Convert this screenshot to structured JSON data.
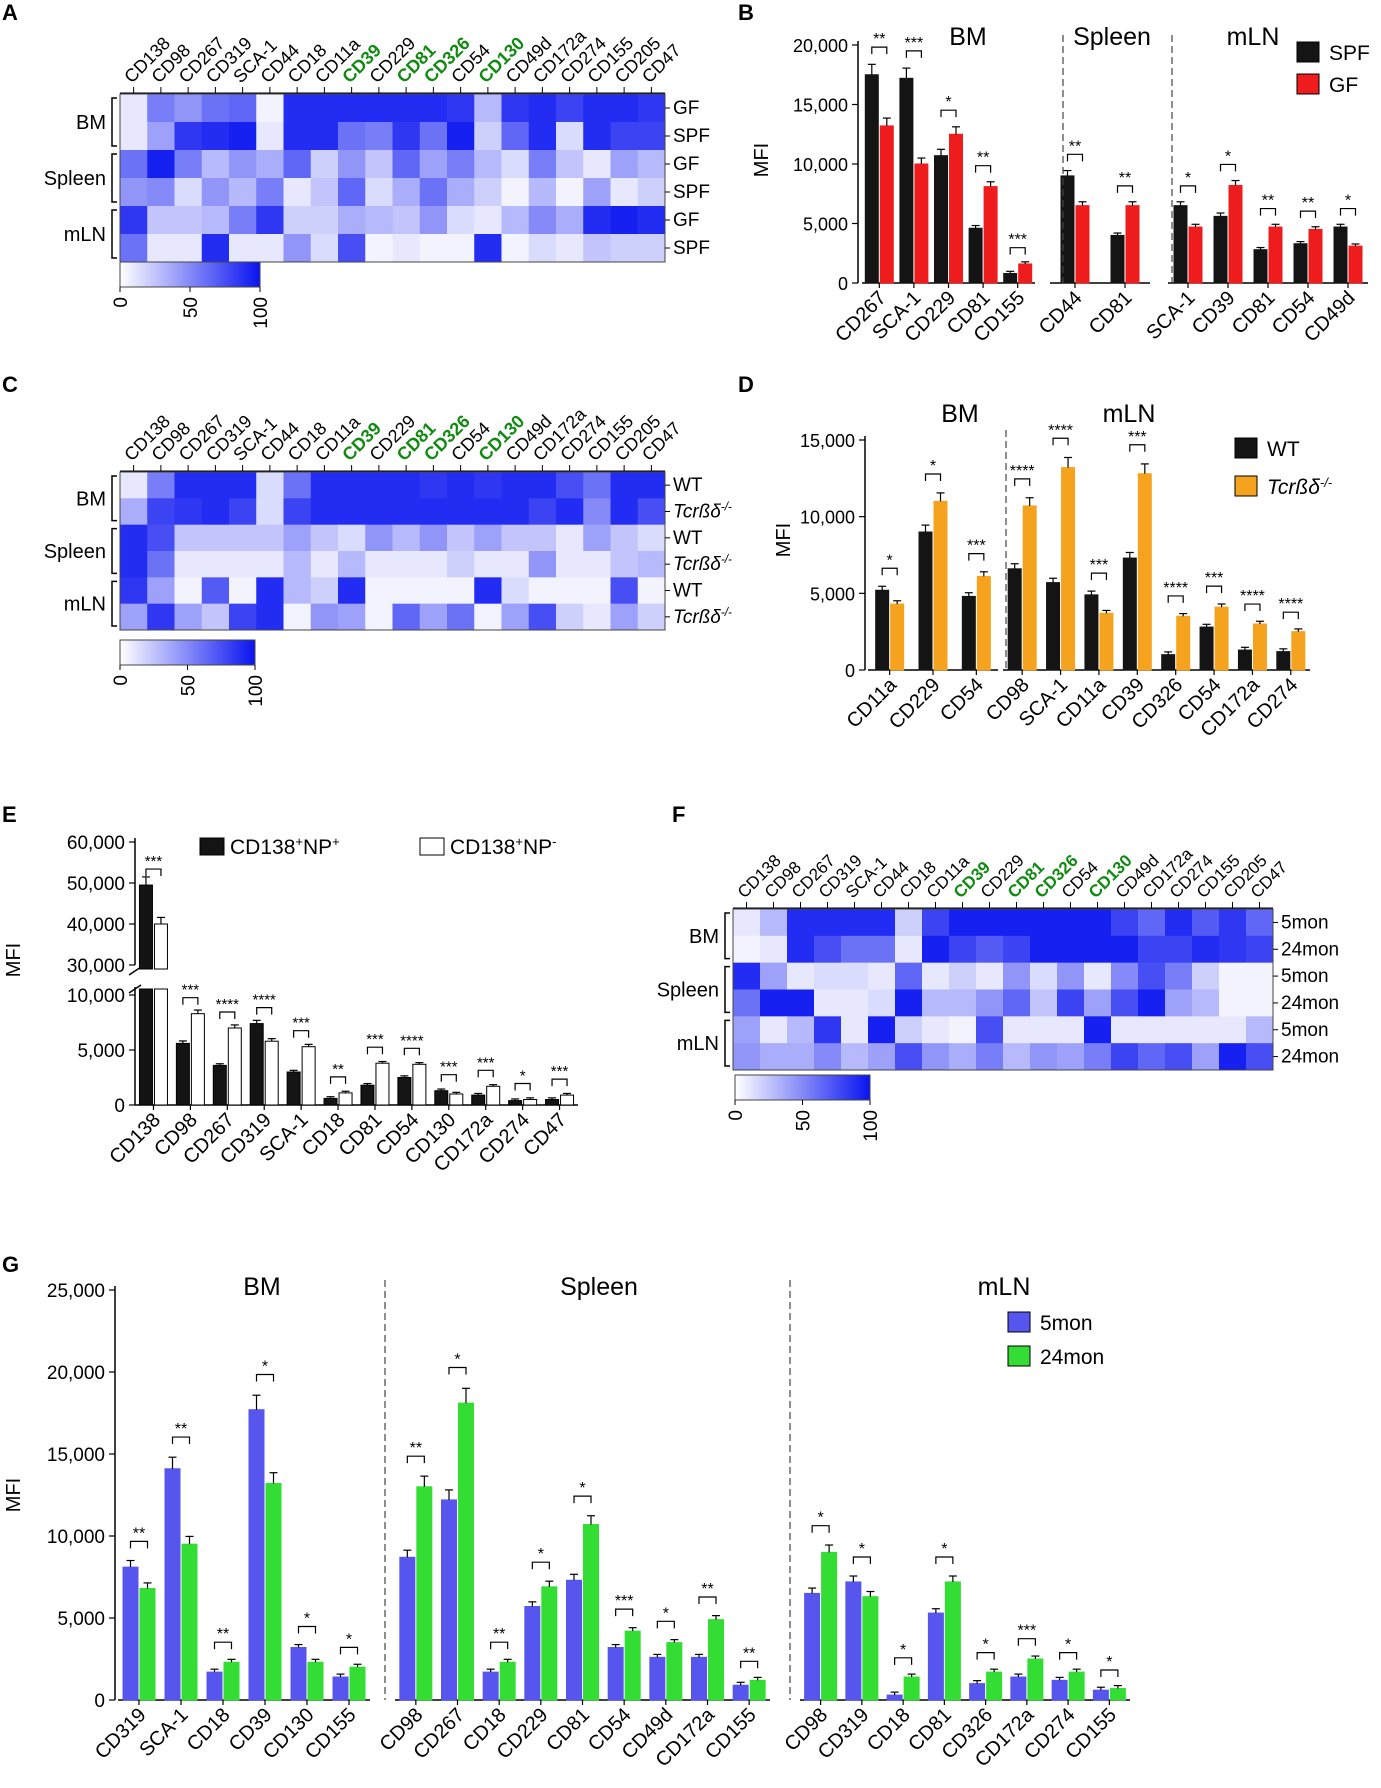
{
  "colors": {
    "heat_max": "#0a14f0",
    "heat_min": "#ffffff",
    "highlight_text": "#118a11",
    "spf": "#141414",
    "gf": "#ee1c1c",
    "wt": "#141414",
    "tcr": "#f5a31f",
    "np_pos": "#141414",
    "np_neg": "#ffffff",
    "mon5": "#5656ee",
    "mon24": "#33dd33"
  },
  "heatmap_markers": [
    "CD138",
    "CD98",
    "CD267",
    "CD319",
    "SCA-1",
    "CD44",
    "CD18",
    "CD11a",
    "CD39",
    "CD229",
    "CD81",
    "CD326",
    "CD54",
    "CD130",
    "CD49d",
    "CD172a",
    "CD274",
    "CD155",
    "CD205",
    "CD47"
  ],
  "highlight_markers": [
    "CD39",
    "CD81",
    "CD326",
    "CD130"
  ],
  "tissues": [
    "BM",
    "Spleen",
    "mLN"
  ],
  "colorbar_ticks": [
    "0",
    "50",
    "100"
  ],
  "chart_data": [
    {
      "id": "A",
      "type": "heatmap",
      "panel_label": "A",
      "row_labels": [
        "GF",
        "SPF",
        "GF",
        "SPF",
        "GF",
        "SPF"
      ],
      "group_labels": [
        "BM",
        "Spleen",
        "mLN"
      ],
      "scale": [
        0,
        100
      ],
      "values": [
        [
          10,
          55,
          45,
          60,
          65,
          5,
          90,
          90,
          90,
          90,
          90,
          90,
          85,
          30,
          85,
          90,
          80,
          90,
          90,
          85
        ],
        [
          10,
          40,
          85,
          90,
          95,
          10,
          90,
          90,
          60,
          55,
          85,
          60,
          95,
          20,
          65,
          90,
          15,
          90,
          80,
          80
        ],
        [
          60,
          95,
          55,
          30,
          45,
          35,
          65,
          20,
          45,
          25,
          65,
          40,
          55,
          30,
          15,
          55,
          25,
          10,
          40,
          30
        ],
        [
          45,
          50,
          15,
          45,
          30,
          55,
          10,
          25,
          65,
          15,
          35,
          60,
          35,
          20,
          5,
          30,
          5,
          40,
          10,
          20
        ],
        [
          85,
          25,
          25,
          30,
          55,
          85,
          20,
          20,
          35,
          30,
          25,
          45,
          15,
          10,
          30,
          50,
          35,
          90,
          95,
          90
        ],
        [
          60,
          10,
          10,
          90,
          10,
          10,
          45,
          15,
          75,
          5,
          10,
          5,
          5,
          90,
          5,
          15,
          10,
          25,
          20,
          20
        ]
      ]
    },
    {
      "id": "B",
      "type": "bar",
      "panel_label": "B",
      "ylabel": "MFI",
      "ylim": [
        0,
        20000
      ],
      "yticks": [
        "0",
        "5,000",
        "10,000",
        "15,000",
        "20,000"
      ],
      "groups": [
        "BM",
        "Spleen",
        "mLN"
      ],
      "categories": [
        [
          "CD267",
          "SCA-1",
          "CD229",
          "CD81",
          "CD155"
        ],
        [
          "CD44",
          "CD81"
        ],
        [
          "SCA-1",
          "CD39",
          "CD81",
          "CD54",
          "CD49d"
        ]
      ],
      "series": [
        {
          "name": "SPF",
          "values": [
            [
              17500,
              17200,
              10700,
              4600,
              800
            ],
            [
              9000,
              4000
            ],
            [
              6500,
              5600,
              2800,
              3300,
              4700
            ]
          ]
        },
        {
          "name": "GF",
          "values": [
            [
              13200,
              10000,
              12500,
              8100,
              1600
            ],
            [
              6500,
              6500
            ],
            [
              4700,
              8200,
              4700,
              4500,
              3100
            ]
          ]
        }
      ],
      "significance": [
        [
          "**",
          "***",
          "*",
          "**",
          "***"
        ],
        [
          "**",
          "**"
        ],
        [
          "*",
          "*",
          "**",
          "**",
          "*"
        ]
      ]
    },
    {
      "id": "C",
      "type": "heatmap",
      "panel_label": "C",
      "row_labels": [
        "WT",
        "Tcrßδ-/-",
        "WT",
        "Tcrßδ-/-",
        "WT",
        "Tcrßδ-/-"
      ],
      "group_labels": [
        "BM",
        "Spleen",
        "mLN"
      ],
      "scale": [
        0,
        100
      ],
      "values": [
        [
          10,
          55,
          90,
          90,
          90,
          15,
          60,
          90,
          90,
          90,
          90,
          85,
          90,
          85,
          90,
          90,
          75,
          60,
          90,
          90
        ],
        [
          35,
          80,
          85,
          90,
          80,
          15,
          80,
          90,
          90,
          90,
          90,
          90,
          90,
          90,
          90,
          80,
          90,
          50,
          90,
          75
        ],
        [
          90,
          75,
          25,
          25,
          25,
          25,
          40,
          25,
          15,
          45,
          30,
          45,
          25,
          40,
          25,
          25,
          10,
          40,
          25,
          15
        ],
        [
          90,
          60,
          10,
          10,
          10,
          10,
          30,
          10,
          30,
          10,
          10,
          10,
          20,
          10,
          10,
          45,
          10,
          10,
          25,
          30
        ],
        [
          85,
          40,
          5,
          70,
          5,
          90,
          30,
          20,
          90,
          5,
          5,
          5,
          5,
          90,
          15,
          5,
          5,
          5,
          75,
          5
        ],
        [
          40,
          85,
          40,
          25,
          80,
          90,
          5,
          45,
          40,
          5,
          65,
          40,
          60,
          5,
          40,
          75,
          20,
          10,
          40,
          20
        ]
      ]
    },
    {
      "id": "D",
      "type": "bar",
      "panel_label": "D",
      "ylabel": "MFI",
      "ylim": [
        0,
        15000
      ],
      "yticks": [
        "0",
        "5,000",
        "10,000",
        "15,000"
      ],
      "groups": [
        "BM",
        "mLN"
      ],
      "categories": [
        [
          "CD11a",
          "CD229",
          "CD54"
        ],
        [
          "CD98",
          "SCA-1",
          "CD11a",
          "CD39",
          "CD326",
          "CD54",
          "CD172a",
          "CD274"
        ]
      ],
      "series": [
        {
          "name": "WT",
          "values": [
            [
              5200,
              9000,
              4800
            ],
            [
              6600,
              5700,
              4900,
              7300,
              1000,
              2800,
              1300,
              1200
            ]
          ]
        },
        {
          "name": "Tcrßδ-/-",
          "values": [
            [
              4300,
              11000,
              6100
            ],
            [
              10700,
              13200,
              3700,
              12800,
              3500,
              4100,
              3000,
              2500
            ]
          ]
        }
      ],
      "significance": [
        [
          "*",
          "*",
          "***"
        ],
        [
          "****",
          "****",
          "***",
          "***",
          "****",
          "***",
          "****",
          "****"
        ]
      ]
    },
    {
      "id": "E",
      "type": "bar",
      "panel_label": "E",
      "ylabel": "MFI",
      "yticks_upper": [
        "30,000",
        "40,000",
        "50,000",
        "60,000"
      ],
      "yticks_lower": [
        "0",
        "5,000",
        "10,000"
      ],
      "categories": [
        "CD138",
        "CD98",
        "CD267",
        "CD319",
        "SCA-1",
        "CD18",
        "CD81",
        "CD54",
        "CD130",
        "CD172a",
        "CD274",
        "CD47"
      ],
      "series": [
        {
          "name": "CD138+NP+",
          "values": [
            49500,
            5600,
            3600,
            7400,
            3000,
            600,
            1800,
            2500,
            1300,
            900,
            400,
            500
          ]
        },
        {
          "name": "CD138+NP-",
          "values": [
            40000,
            8300,
            7000,
            5800,
            5300,
            1100,
            3800,
            3700,
            1000,
            1700,
            500,
            900
          ]
        }
      ],
      "significance": [
        "***",
        "***",
        "****",
        "****",
        "***",
        "**",
        "***",
        "****",
        "***",
        "***",
        "*",
        "***"
      ]
    },
    {
      "id": "F",
      "type": "heatmap",
      "panel_label": "F",
      "row_labels": [
        "5mon",
        "24mon",
        "5mon",
        "24mon",
        "5mon",
        "24mon"
      ],
      "group_labels": [
        "BM",
        "Spleen",
        "mLN"
      ],
      "scale": [
        0,
        100
      ],
      "values": [
        [
          10,
          30,
          90,
          90,
          90,
          90,
          20,
          80,
          95,
          95,
          95,
          95,
          95,
          95,
          80,
          65,
          90,
          70,
          85,
          65
        ],
        [
          5,
          10,
          90,
          75,
          60,
          60,
          10,
          95,
          80,
          70,
          80,
          95,
          95,
          95,
          95,
          80,
          80,
          90,
          85,
          80
        ],
        [
          90,
          40,
          10,
          15,
          15,
          10,
          65,
          10,
          20,
          10,
          45,
          15,
          45,
          10,
          50,
          75,
          55,
          20,
          5,
          5
        ],
        [
          60,
          95,
          95,
          10,
          10,
          15,
          95,
          30,
          30,
          45,
          65,
          25,
          80,
          40,
          75,
          95,
          40,
          30,
          5,
          5
        ],
        [
          40,
          10,
          30,
          85,
          10,
          95,
          20,
          10,
          5,
          75,
          10,
          10,
          10,
          95,
          10,
          10,
          10,
          10,
          10,
          30
        ],
        [
          45,
          35,
          35,
          50,
          30,
          40,
          75,
          45,
          35,
          55,
          30,
          45,
          40,
          55,
          80,
          65,
          75,
          40,
          95,
          75
        ]
      ]
    },
    {
      "id": "G",
      "type": "bar",
      "panel_label": "G",
      "ylabel": "MFI",
      "ylim": [
        0,
        25000
      ],
      "yticks": [
        "0",
        "5,000",
        "10,000",
        "15,000",
        "20,000",
        "25,000"
      ],
      "groups": [
        "BM",
        "Spleen",
        "mLN"
      ],
      "categories": [
        [
          "CD319",
          "SCA-1",
          "CD18",
          "CD39",
          "CD130",
          "CD155"
        ],
        [
          "CD98",
          "CD267",
          "CD18",
          "CD229",
          "CD81",
          "CD54",
          "CD49d",
          "CD172a",
          "CD155"
        ],
        [
          "CD98",
          "CD319",
          "CD18",
          "CD81",
          "CD326",
          "CD172a",
          "CD274",
          "CD155"
        ]
      ],
      "series": [
        {
          "name": "5mon",
          "values": [
            [
              8100,
              14100,
              1700,
              17700,
              3200,
              1400
            ],
            [
              8700,
              12200,
              1700,
              5700,
              7300,
              3200,
              2600,
              2600,
              900
            ],
            [
              6500,
              7200,
              300,
              5300,
              1000,
              1400,
              1200,
              600
            ]
          ]
        },
        {
          "name": "24mon",
          "values": [
            [
              6800,
              9500,
              2300,
              13200,
              2300,
              2000
            ],
            [
              13000,
              18100,
              2300,
              6900,
              10700,
              4200,
              3500,
              4900,
              1200
            ],
            [
              9000,
              6300,
              1400,
              7200,
              1700,
              2500,
              1700,
              700
            ]
          ]
        }
      ],
      "significance": [
        [
          "**",
          "**",
          "**",
          "*",
          "*",
          "*"
        ],
        [
          "**",
          "*",
          "**",
          "*",
          "*",
          "***",
          "*",
          "**",
          "**"
        ],
        [
          "*",
          "*",
          "*",
          "*",
          "*",
          "***",
          "*",
          "*"
        ]
      ]
    }
  ]
}
